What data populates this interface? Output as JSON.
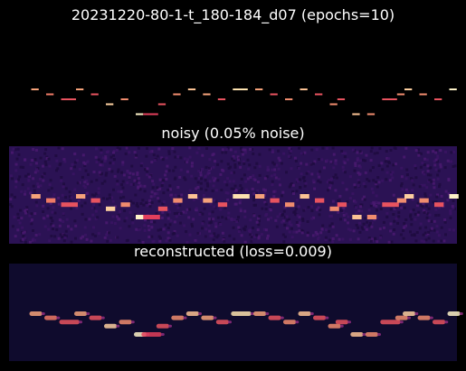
{
  "figure_title": "20231220-80-1-t_180-184_d07 (epochs=10)",
  "chart_data": [
    {
      "type": "heatmap",
      "title": "",
      "background_color": "#000000",
      "grid": false,
      "rows": 24,
      "columns": 60,
      "notes": [
        {
          "col": 2,
          "len": 1,
          "row": 0,
          "c": "#f5a27a"
        },
        {
          "col": 4,
          "len": 1,
          "row": 1,
          "c": "#ee7a66"
        },
        {
          "col": 6,
          "len": 2,
          "row": 2,
          "c": "#e8535f"
        },
        {
          "col": 8,
          "len": 1,
          "row": 0,
          "c": "#f5a27a"
        },
        {
          "col": 10,
          "len": 1,
          "row": 1,
          "c": "#e8535f"
        },
        {
          "col": 12,
          "len": 1,
          "row": 3,
          "c": "#fccfa0"
        },
        {
          "col": 14,
          "len": 1,
          "row": 2,
          "c": "#f08c6e"
        },
        {
          "col": 16,
          "len": 1,
          "row": 5,
          "c": "#fdf2c8"
        },
        {
          "col": 17,
          "len": 2,
          "row": 5,
          "c": "#e23f5c"
        },
        {
          "col": 19,
          "len": 1,
          "row": 3,
          "c": "#e8535f"
        },
        {
          "col": 21,
          "len": 1,
          "row": 1,
          "c": "#f08c6e"
        },
        {
          "col": 23,
          "len": 1,
          "row": 0,
          "c": "#fbc294"
        },
        {
          "col": 25,
          "len": 1,
          "row": 1,
          "c": "#f5a27a"
        },
        {
          "col": 27,
          "len": 1,
          "row": 2,
          "c": "#e8535f"
        },
        {
          "col": 29,
          "len": 2,
          "row": 0,
          "c": "#fde3b0"
        },
        {
          "col": 32,
          "len": 1,
          "row": 0,
          "c": "#f5a27a"
        },
        {
          "col": 34,
          "len": 1,
          "row": 1,
          "c": "#e8535f"
        },
        {
          "col": 36,
          "len": 1,
          "row": 2,
          "c": "#f08c6e"
        },
        {
          "col": 38,
          "len": 1,
          "row": 0,
          "c": "#fbc294"
        },
        {
          "col": 40,
          "len": 1,
          "row": 1,
          "c": "#e8535f"
        },
        {
          "col": 42,
          "len": 1,
          "row": 3,
          "c": "#f08c6e"
        },
        {
          "col": 43,
          "len": 1,
          "row": 2,
          "c": "#e8535f"
        },
        {
          "col": 45,
          "len": 1,
          "row": 5,
          "c": "#fbc294"
        },
        {
          "col": 47,
          "len": 1,
          "row": 5,
          "c": "#f08c6e"
        },
        {
          "col": 49,
          "len": 2,
          "row": 2,
          "c": "#e8535f"
        },
        {
          "col": 51,
          "len": 1,
          "row": 1,
          "c": "#f08c6e"
        },
        {
          "col": 52,
          "len": 1,
          "row": 0,
          "c": "#fccfa0"
        },
        {
          "col": 54,
          "len": 1,
          "row": 1,
          "c": "#f08c6e"
        },
        {
          "col": 56,
          "len": 1,
          "row": 2,
          "c": "#e8535f"
        },
        {
          "col": 58,
          "len": 1,
          "row": 0,
          "c": "#fdf2c8"
        }
      ]
    },
    {
      "type": "heatmap",
      "title": "noisy (0.05% noise)",
      "background_color": "#2b1254",
      "grid": false,
      "rows": 24,
      "columns": 60,
      "same_notes_as_first": true
    },
    {
      "type": "heatmap",
      "title": "reconstructed (loss=0.009)",
      "background_color": "#0f0b2d",
      "grid": false,
      "rows": 24,
      "columns": 60,
      "same_notes_as_first": true
    }
  ]
}
